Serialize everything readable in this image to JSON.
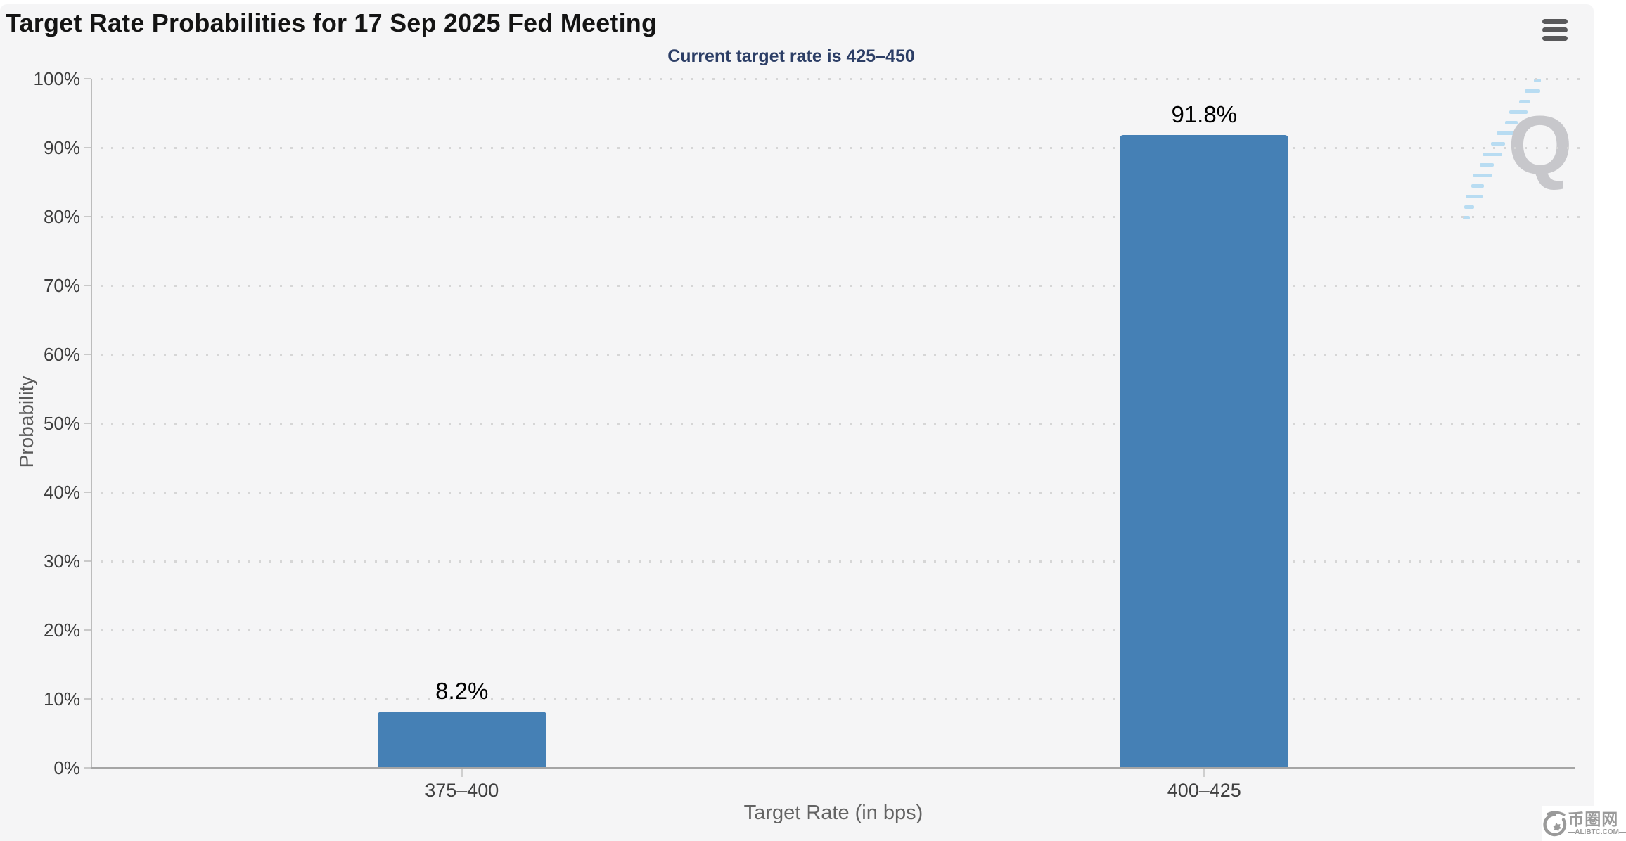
{
  "header": {
    "title": "Target Rate Probabilities for 17 Sep 2025 Fed Meeting",
    "menu_icon": "hamburger-icon"
  },
  "chart_data": {
    "type": "bar",
    "title": "Target Rate Probabilities for 17 Sep 2025 Fed Meeting",
    "subtitle": "Current target rate is 425–450",
    "categories": [
      "375–400",
      "400–425"
    ],
    "values": [
      8.2,
      91.8
    ],
    "value_labels": [
      "8.2%",
      "91.8%"
    ],
    "xlabel": "Target Rate (in bps)",
    "ylabel": "Probability",
    "ylim": [
      0,
      100
    ],
    "ytick_step": 10,
    "ytick_labels": [
      "0%",
      "10%",
      "20%",
      "30%",
      "40%",
      "50%",
      "60%",
      "70%",
      "80%",
      "90%",
      "100%"
    ],
    "grid": "horizontal-dotted",
    "legend": "none",
    "bar_color": "#4580b5"
  },
  "colors": {
    "panel_background": "#f5f5f6",
    "bar": "#4580b5",
    "subtitle": "#2c3e66",
    "axis_line": "#a5a5a5",
    "gridline": "#d6d6d6",
    "watermark_gray": "#c7c7cb",
    "watermark_blue": "#b8dcf2"
  },
  "watermarks": {
    "quikstrike_letter": "Q",
    "site_name": "币圈网",
    "site_url": "—ALIBTC.COM—"
  }
}
